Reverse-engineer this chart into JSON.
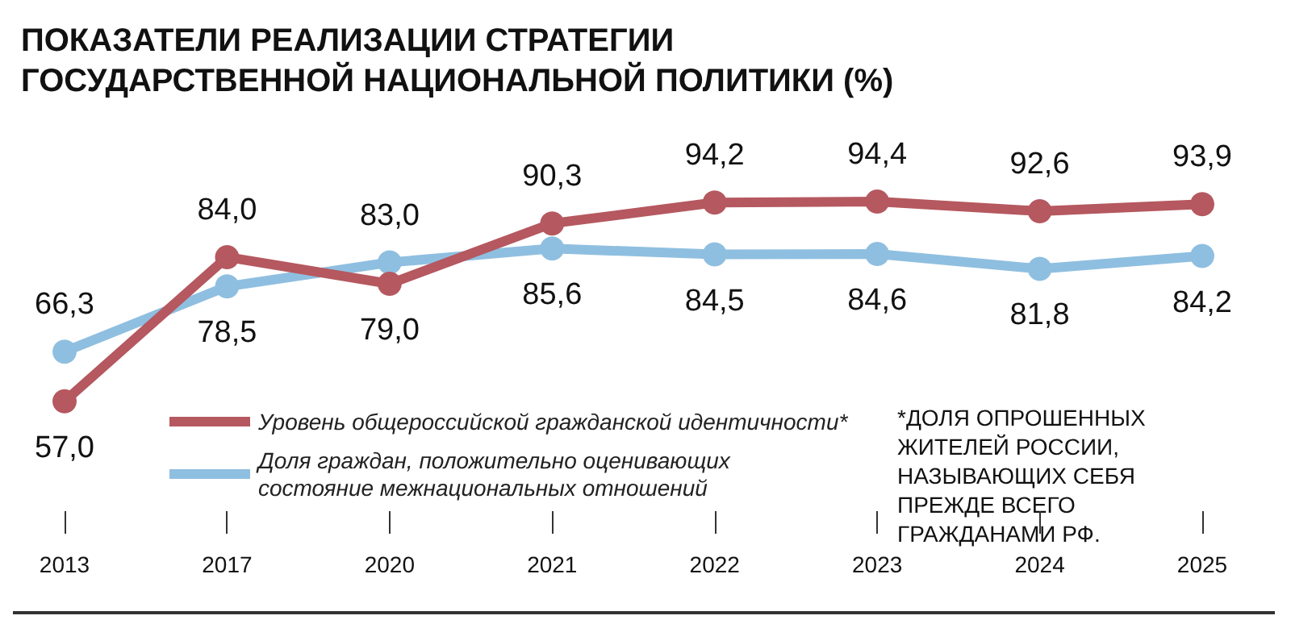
{
  "chart_data": {
    "type": "line",
    "title": "ПОКАЗАТЕЛИ РЕАЛИЗАЦИИ СТРАТЕГИИ ГОСУДАРСТВЕННОЙ НАЦИОНАЛЬНОЙ ПОЛИТИКИ (%)",
    "categories": [
      "2013",
      "2017",
      "2020",
      "2021",
      "2022",
      "2023",
      "2024",
      "2025"
    ],
    "series": [
      {
        "name": "Уровень общероссийской гражданской идентичности*",
        "color": "#b5585f",
        "values": [
          57.0,
          84.0,
          79.0,
          90.3,
          94.2,
          94.4,
          92.6,
          93.9
        ],
        "value_labels": [
          "57,0",
          "84,0",
          "79,0",
          "90,3",
          "94,2",
          "94,4",
          "92,6",
          "93,9"
        ]
      },
      {
        "name": "Доля граждан, положительно оценивающих состояние межнациональных отношений",
        "color": "#8fbfe0",
        "values": [
          66.3,
          78.5,
          83.0,
          85.6,
          84.5,
          84.6,
          81.8,
          84.2
        ],
        "value_labels": [
          "66,3",
          "78,5",
          "83,0",
          "85,6",
          "84,5",
          "84,6",
          "81,8",
          "84,2"
        ]
      }
    ],
    "marker": "circle",
    "legend": "bottom left",
    "grid": false,
    "annotations": [
      "*ДОЛЯ ОПРОШЕННЫХ ЖИТЕЛЕЙ РОССИИ, НАЗЫВАЮЩИХ СЕБЯ ПРЕЖДЕ ВСЕГО ГРАЖДАНАМИ РФ."
    ]
  }
}
